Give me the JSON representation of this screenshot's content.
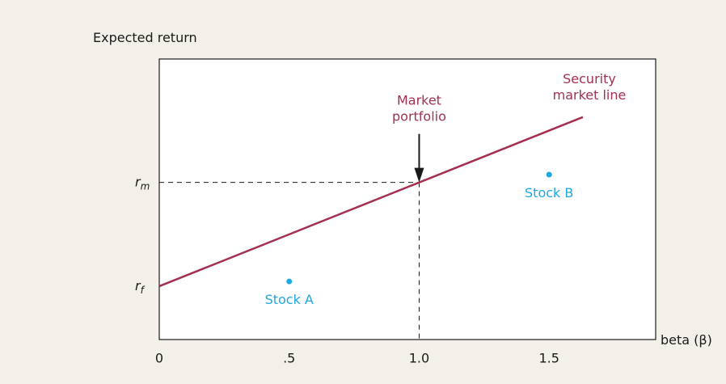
{
  "chart_data": {
    "type": "line",
    "y_label": "Expected return",
    "x_label": "beta (β)",
    "xlim": [
      0,
      1.91
    ],
    "ylim": [
      0,
      10
    ],
    "xticks": [
      0,
      {
        "value": 0.5,
        "label": ".5"
      },
      {
        "value": 1,
        "label": "1.0"
      },
      {
        "value": 1.5,
        "label": "1.5"
      }
    ],
    "yticks": [
      {
        "value": 1.9,
        "label": "rf"
      },
      {
        "value": 5.6,
        "label": "rm"
      }
    ],
    "series": [
      {
        "name": "Security market line",
        "type": "line",
        "color": "#a3304f",
        "x": [
          0,
          1,
          1.63
        ],
        "values": [
          1.9,
          5.6,
          7.93
        ]
      },
      {
        "name": "Stock A",
        "type": "scatter",
        "color": "#1ea7e1",
        "x": [
          0.5
        ],
        "values": [
          2.07
        ]
      },
      {
        "name": "Stock B",
        "type": "scatter",
        "color": "#1ea7e1",
        "x": [
          1.5
        ],
        "values": [
          5.88
        ]
      }
    ],
    "annotations": [
      {
        "text": "Market portfolio",
        "x": 1,
        "y": 5.6
      }
    ]
  }
}
